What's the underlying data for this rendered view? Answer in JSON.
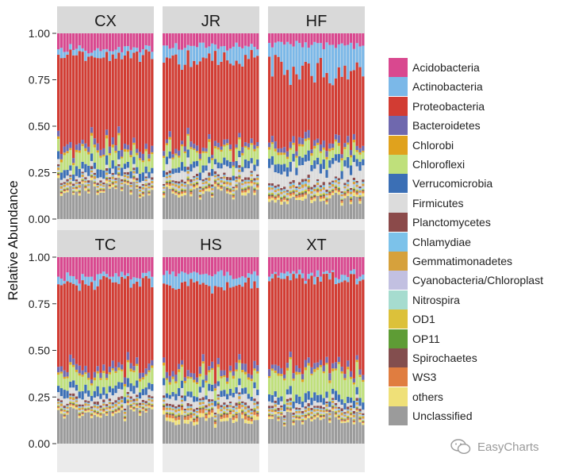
{
  "chart_data": {
    "type": "bar",
    "stacked": true,
    "ylabel": "Relative Abundance",
    "xlabel": "",
    "ylim": [
      0,
      1
    ],
    "yticks": [
      "0.00",
      "0.25",
      "0.50",
      "0.75",
      "1.00"
    ],
    "bars_per_panel": 32,
    "legend_position": "right",
    "taxa": [
      {
        "name": "Acidobacteria",
        "color": "#d9488f"
      },
      {
        "name": "Actinobacteria",
        "color": "#7bb8e8"
      },
      {
        "name": "Proteobacteria",
        "color": "#d23c33"
      },
      {
        "name": "Bacteroidetes",
        "color": "#6f68ae"
      },
      {
        "name": "Chlorobi",
        "color": "#e0a21d"
      },
      {
        "name": "Chloroflexi",
        "color": "#bfe07b"
      },
      {
        "name": "Verrucomicrobia",
        "color": "#3b6fb5"
      },
      {
        "name": "Firmicutes",
        "color": "#dcdcdc"
      },
      {
        "name": "Planctomycetes",
        "color": "#8b4a4a"
      },
      {
        "name": "Chlamydiae",
        "color": "#7cc2ea"
      },
      {
        "name": "Gemmatimonadetes",
        "color": "#d6a13c"
      },
      {
        "name": "Cyanobacteria/Chloroplast",
        "color": "#c2c0e1"
      },
      {
        "name": "Nitrospira",
        "color": "#a6dccf"
      },
      {
        "name": "OD1",
        "color": "#dcc13a"
      },
      {
        "name": "OP11",
        "color": "#5e9c35"
      },
      {
        "name": "Spirochaetes",
        "color": "#834e4e"
      },
      {
        "name": "WS3",
        "color": "#e07d40"
      },
      {
        "name": "others",
        "color": "#efe078"
      },
      {
        "name": "Unclassified",
        "color": "#9b9b9b"
      }
    ],
    "panels": [
      {
        "label": "CX",
        "profile": {
          "Unclassified": 0.16,
          "others": 0.01,
          "WS3": 0.005,
          "Spirochaetes": 0.004,
          "OP11": 0.003,
          "OD1": 0.005,
          "Nitrospira": 0.004,
          "Cyanobacteria/Chloroplast": 0.006,
          "Gemmatimonadetes": 0.012,
          "Chlamydiae": 0.006,
          "Planctomycetes": 0.012,
          "Firmicutes": 0.02,
          "Verrucomicrobia": 0.04,
          "Chloroflexi": 0.07,
          "Chlorobi": 0.012,
          "Bacteroidetes": 0.03,
          "Proteobacteria": 0.46,
          "Actinobacteria": 0.03,
          "Acidobacteria": 0.085
        }
      },
      {
        "label": "JR",
        "profile": {
          "Unclassified": 0.15,
          "others": 0.012,
          "WS3": 0.008,
          "Spirochaetes": 0.005,
          "OP11": 0.004,
          "OD1": 0.006,
          "Nitrospira": 0.005,
          "Cyanobacteria/Chloroplast": 0.008,
          "Gemmatimonadetes": 0.012,
          "Chlamydiae": 0.008,
          "Planctomycetes": 0.012,
          "Firmicutes": 0.045,
          "Verrucomicrobia": 0.035,
          "Chloroflexi": 0.065,
          "Chlorobi": 0.01,
          "Bacteroidetes": 0.025,
          "Proteobacteria": 0.46,
          "Actinobacteria": 0.06,
          "Acidobacteria": 0.07
        }
      },
      {
        "label": "HF",
        "profile": {
          "Unclassified": 0.11,
          "others": 0.015,
          "WS3": 0.01,
          "Spirochaetes": 0.006,
          "OP11": 0.004,
          "OD1": 0.006,
          "Nitrospira": 0.006,
          "Cyanobacteria/Chloroplast": 0.008,
          "Gemmatimonadetes": 0.012,
          "Chlamydiae": 0.01,
          "Planctomycetes": 0.012,
          "Firmicutes": 0.075,
          "Verrucomicrobia": 0.045,
          "Chloroflexi": 0.055,
          "Chlorobi": 0.012,
          "Bacteroidetes": 0.03,
          "Proteobacteria": 0.4,
          "Actinobacteria": 0.12,
          "Acidobacteria": 0.06
        }
      },
      {
        "label": "TC",
        "profile": {
          "Unclassified": 0.16,
          "others": 0.01,
          "WS3": 0.006,
          "Spirochaetes": 0.004,
          "OP11": 0.003,
          "OD1": 0.005,
          "Nitrospira": 0.004,
          "Cyanobacteria/Chloroplast": 0.006,
          "Gemmatimonadetes": 0.012,
          "Chlamydiae": 0.006,
          "Planctomycetes": 0.012,
          "Firmicutes": 0.03,
          "Verrucomicrobia": 0.04,
          "Chloroflexi": 0.07,
          "Chlorobi": 0.012,
          "Bacteroidetes": 0.03,
          "Proteobacteria": 0.46,
          "Actinobacteria": 0.03,
          "Acidobacteria": 0.1
        }
      },
      {
        "label": "HS",
        "profile": {
          "Unclassified": 0.12,
          "others": 0.02,
          "WS3": 0.015,
          "Spirochaetes": 0.006,
          "OP11": 0.004,
          "OD1": 0.006,
          "Nitrospira": 0.005,
          "Cyanobacteria/Chloroplast": 0.007,
          "Gemmatimonadetes": 0.012,
          "Chlamydiae": 0.008,
          "Planctomycetes": 0.012,
          "Firmicutes": 0.04,
          "Verrucomicrobia": 0.03,
          "Chloroflexi": 0.07,
          "Chlorobi": 0.012,
          "Bacteroidetes": 0.03,
          "Proteobacteria": 0.46,
          "Actinobacteria": 0.05,
          "Acidobacteria": 0.09
        }
      },
      {
        "label": "XT",
        "profile": {
          "Unclassified": 0.14,
          "others": 0.01,
          "WS3": 0.006,
          "Spirochaetes": 0.004,
          "OP11": 0.003,
          "OD1": 0.005,
          "Nitrospira": 0.004,
          "Cyanobacteria/Chloroplast": 0.006,
          "Gemmatimonadetes": 0.012,
          "Chlamydiae": 0.006,
          "Planctomycetes": 0.012,
          "Firmicutes": 0.02,
          "Verrucomicrobia": 0.035,
          "Chloroflexi": 0.12,
          "Chlorobi": 0.012,
          "Bacteroidetes": 0.03,
          "Proteobacteria": 0.46,
          "Actinobacteria": 0.02,
          "Acidobacteria": 0.09
        }
      }
    ]
  },
  "watermark": {
    "text": "EasyCharts",
    "icon": "wechat-icon"
  }
}
